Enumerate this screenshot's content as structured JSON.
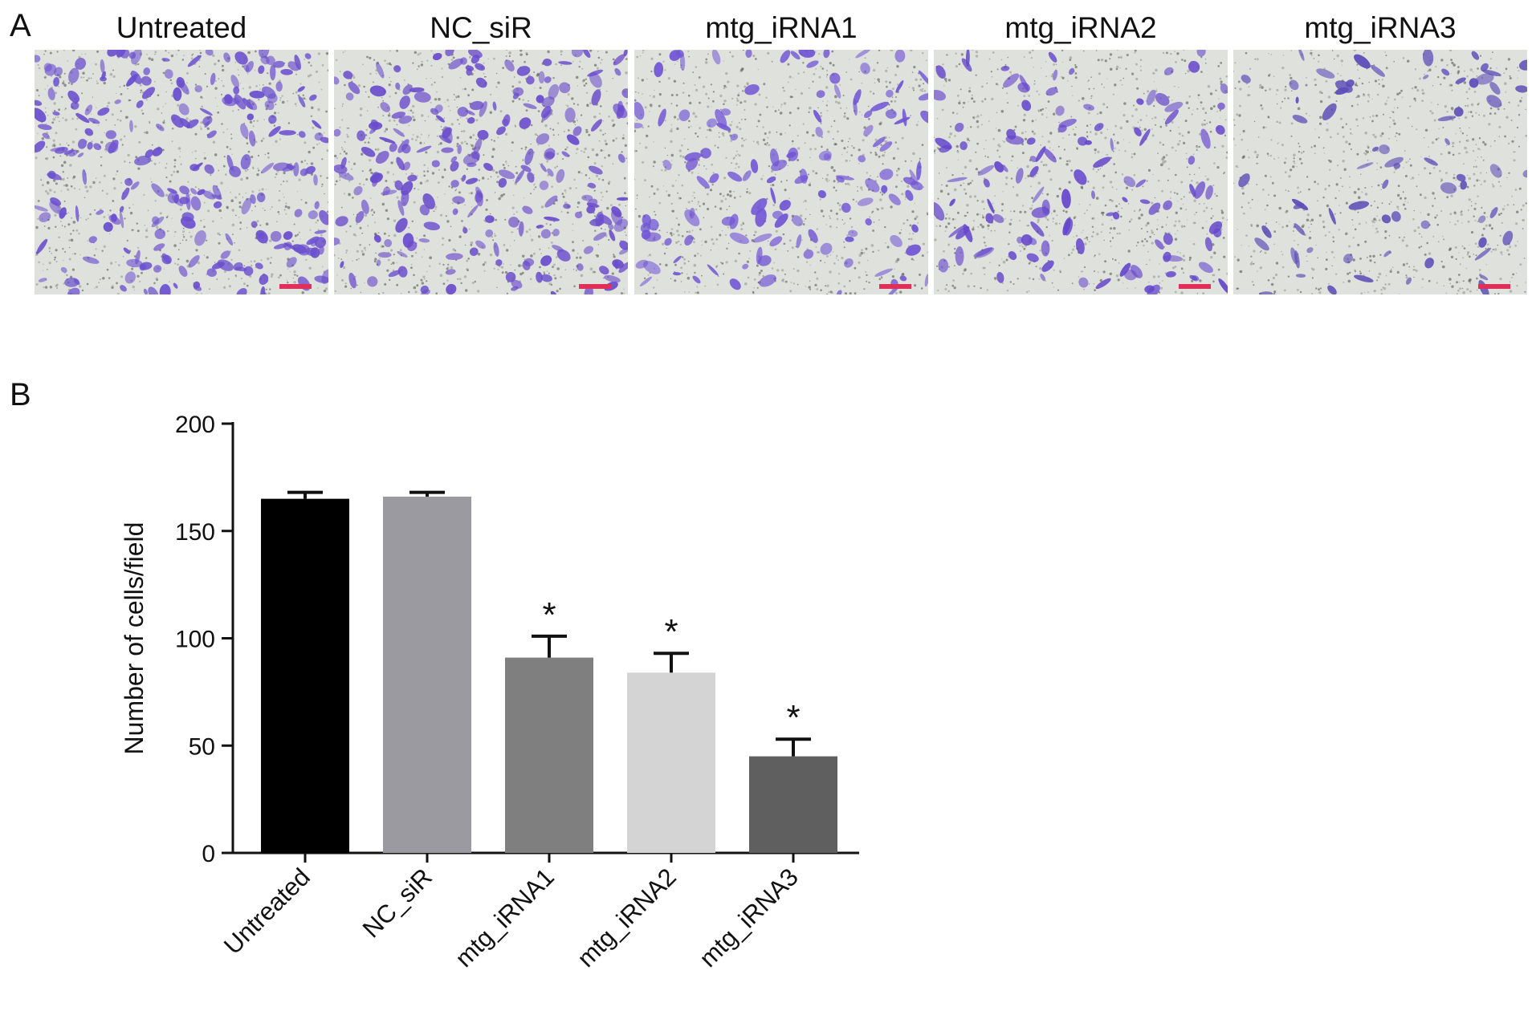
{
  "panel_a": {
    "letter": "A",
    "images": [
      {
        "label": "Untreated",
        "density": 1.0,
        "tint": "#6b4fcf"
      },
      {
        "label": "NC_siR",
        "density": 0.95,
        "tint": "#6a4ccc"
      },
      {
        "label": "mtg_iRNA1",
        "density": 0.55,
        "tint": "#7256d6"
      },
      {
        "label": "mtg_iRNA2",
        "density": 0.5,
        "tint": "#6547cc"
      },
      {
        "label": "mtg_iRNA3",
        "density": 0.3,
        "tint": "#5d4db8"
      }
    ]
  },
  "panel_b": {
    "letter": "B"
  },
  "chart_data": {
    "type": "bar",
    "categories": [
      "Untreated",
      "NC_siR",
      "mtg_iRNA1",
      "mtg_iRNA2",
      "mtg_iRNA3"
    ],
    "values": [
      165,
      166,
      91,
      84,
      45
    ],
    "errors": [
      3,
      2,
      10,
      9,
      8
    ],
    "significance": [
      "",
      "",
      "*",
      "*",
      "*"
    ],
    "bar_colors": [
      "#000000",
      "#9a9aa0",
      "#7f7f7f",
      "#d4d4d4",
      "#5f5f5f"
    ],
    "ylabel": "Number of cells/field",
    "ylim": [
      0,
      200
    ],
    "yticks": [
      0,
      50,
      100,
      150,
      200
    ],
    "grid": false,
    "legend": "none"
  }
}
